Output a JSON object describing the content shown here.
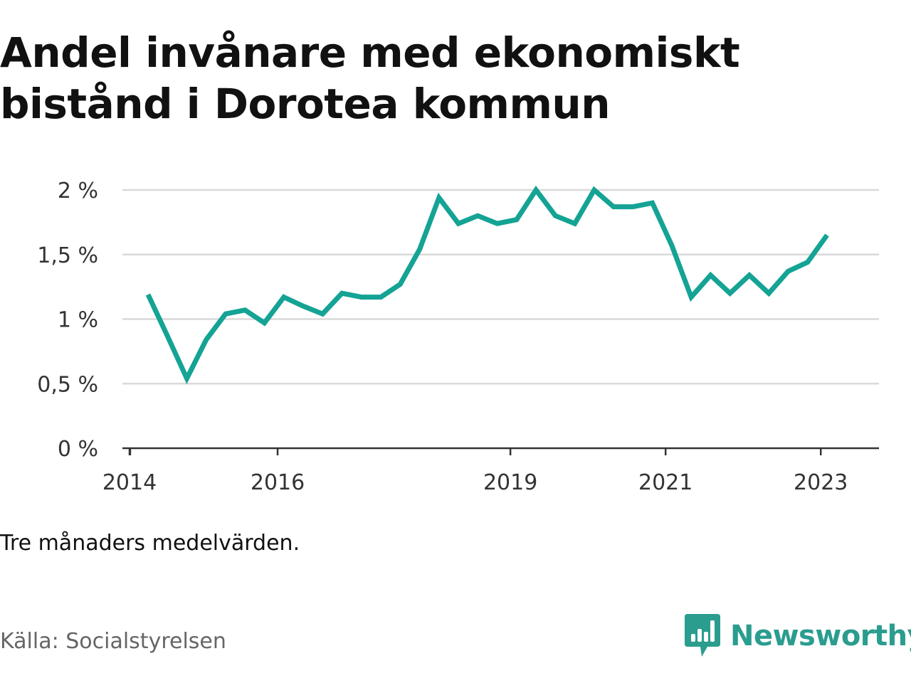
{
  "title_lines": [
    "Andel invånare med ekonomiskt",
    "bistånd i Dorotea kommun"
  ],
  "note": "Tre månaders medelvärden.",
  "source": "Källa: Socialstyrelsen",
  "brand": {
    "name": "Newsworthy",
    "icon": "bar-chart-badge-icon",
    "color": "#2a9d8f"
  },
  "colors": {
    "line": "#14a394",
    "grid": "#d9d9d9",
    "axis": "#333333"
  },
  "chart_data": {
    "type": "line",
    "title": "Andel invånare med ekonomiskt bistånd i Dorotea kommun",
    "xlabel": "",
    "ylabel": "",
    "ylim": [
      0,
      2
    ],
    "xlim": [
      2014.0,
      2023.75
    ],
    "y_ticks": [
      {
        "value": 0,
        "label": "0 %"
      },
      {
        "value": 0.5,
        "label": "0,5 %"
      },
      {
        "value": 1,
        "label": "1 %"
      },
      {
        "value": 1.5,
        "label": "1,5 %"
      },
      {
        "value": 2,
        "label": "2 %"
      }
    ],
    "x_ticks": [
      {
        "value": 2014,
        "label": "2014"
      },
      {
        "value": 2016,
        "label": "2016"
      },
      {
        "value": 2019,
        "label": "2019"
      },
      {
        "value": 2021,
        "label": "2021"
      },
      {
        "value": 2023,
        "label": "2023"
      }
    ],
    "grid": true,
    "series": [
      {
        "x": [
          2014.33,
          2014.58,
          2014.83,
          2015.08,
          2015.33,
          2015.58,
          2015.83,
          2016.08,
          2016.33,
          2016.58,
          2016.83,
          2017.08,
          2017.33,
          2017.58,
          2017.83,
          2018.08,
          2018.33,
          2018.58,
          2018.83,
          2019.08,
          2019.33,
          2019.58,
          2019.83,
          2020.08,
          2020.33,
          2020.58,
          2020.83,
          2021.08,
          2021.33,
          2021.58,
          2021.83,
          2022.08,
          2022.33,
          2022.58,
          2022.83,
          2023.08
        ],
        "y": [
          1.19,
          0.87,
          0.54,
          0.84,
          1.04,
          1.07,
          0.97,
          1.17,
          1.1,
          1.04,
          1.2,
          1.17,
          1.17,
          1.27,
          1.54,
          1.94,
          1.74,
          1.8,
          1.74,
          1.77,
          2.0,
          1.8,
          1.74,
          2.0,
          1.87,
          1.87,
          1.9,
          1.57,
          1.17,
          1.34,
          1.2,
          1.34,
          1.2,
          1.37,
          1.44,
          1.65
        ]
      }
    ]
  }
}
